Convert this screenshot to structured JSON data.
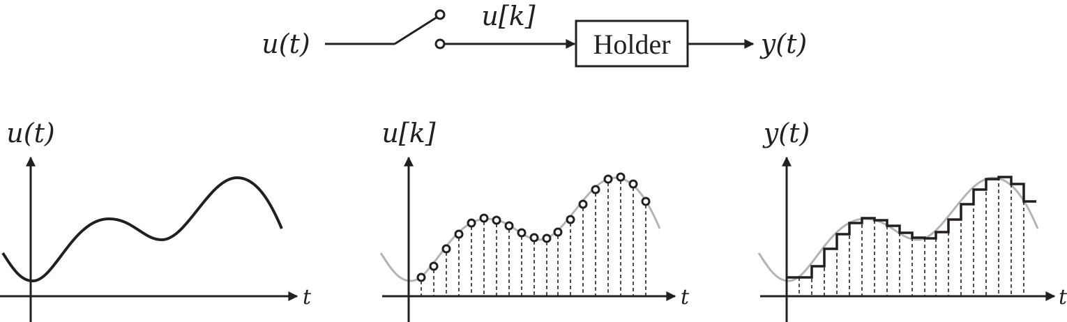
{
  "diagram": {
    "input_label": "u(t)",
    "sampled_label": "u[k]",
    "holder_label": "Holder",
    "output_label": "y(t)"
  },
  "plots": [
    {
      "ylabel": "u(t)",
      "xlabel": "t"
    },
    {
      "ylabel": "u[k]",
      "xlabel": "t"
    },
    {
      "ylabel": "y(t)",
      "xlabel": "t"
    }
  ],
  "colors": {
    "ink": "#231f20",
    "faded_signal": "#b3b3b3",
    "background": "#ffffff"
  }
}
